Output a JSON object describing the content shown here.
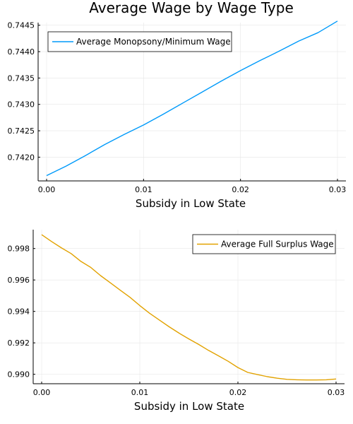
{
  "chart_data": [
    {
      "type": "line",
      "title": "Average Wage by Wage Type",
      "xlabel": "Subsidy in Low State",
      "ylabel": "",
      "xlim": [
        0,
        0.03
      ],
      "ylim": [
        0.74155,
        0.74455
      ],
      "xticks": [
        0,
        0.01,
        0.02,
        0.03
      ],
      "xtick_labels": [
        "0.00",
        "0.01",
        "0.02",
        "0.03"
      ],
      "yticks": [
        0.742,
        0.7425,
        0.743,
        0.7435,
        0.744,
        0.7445
      ],
      "ytick_labels": [
        "0.7420",
        "0.7425",
        "0.7430",
        "0.7435",
        "0.7440",
        "0.7445"
      ],
      "grid": true,
      "legend": "top-left",
      "series": [
        {
          "name": "Average Monopsony/Minimum Wage",
          "color": "#009AFA",
          "x": [
            0,
            0.002,
            0.004,
            0.006,
            0.008,
            0.01,
            0.012,
            0.014,
            0.016,
            0.018,
            0.02,
            0.022,
            0.024,
            0.026,
            0.028,
            0.03
          ],
          "y": [
            0.74165,
            0.74183,
            0.74203,
            0.74224,
            0.74243,
            0.74261,
            0.74281,
            0.74302,
            0.74323,
            0.74344,
            0.74364,
            0.74383,
            0.74401,
            0.7442,
            0.74436,
            0.74458
          ]
        }
      ]
    },
    {
      "type": "line",
      "title": "",
      "xlabel": "Subsidy in Low State",
      "ylabel": "",
      "xlim": [
        0,
        0.03
      ],
      "ylim": [
        0.9894,
        0.9992
      ],
      "xticks": [
        0,
        0.01,
        0.02,
        0.03
      ],
      "xtick_labels": [
        "0.00",
        "0.01",
        "0.02",
        "0.03"
      ],
      "yticks": [
        0.99,
        0.992,
        0.994,
        0.996,
        0.998
      ],
      "ytick_labels": [
        "0.990",
        "0.992",
        "0.994",
        "0.996",
        "0.998"
      ],
      "grid": true,
      "legend": "top-right",
      "series": [
        {
          "name": "Average Full Surplus Wage",
          "color": "#E2A200",
          "x": [
            0,
            0.001,
            0.002,
            0.003,
            0.004,
            0.005,
            0.006,
            0.007,
            0.008,
            0.009,
            0.01,
            0.011,
            0.012,
            0.013,
            0.014,
            0.015,
            0.016,
            0.017,
            0.018,
            0.019,
            0.02,
            0.021,
            0.022,
            0.023,
            0.024,
            0.025,
            0.026,
            0.027,
            0.028,
            0.029,
            0.03
          ],
          "y": [
            0.99888,
            0.99845,
            0.99805,
            0.99768,
            0.99718,
            0.9968,
            0.99628,
            0.99582,
            0.99535,
            0.9949,
            0.99437,
            0.99388,
            0.99345,
            0.99302,
            0.99262,
            0.99225,
            0.9919,
            0.99152,
            0.99118,
            0.99083,
            0.99043,
            0.99012,
            0.98998,
            0.98985,
            0.98975,
            0.98968,
            0.98965,
            0.98964,
            0.98964,
            0.98965,
            0.9897
          ]
        }
      ]
    }
  ]
}
